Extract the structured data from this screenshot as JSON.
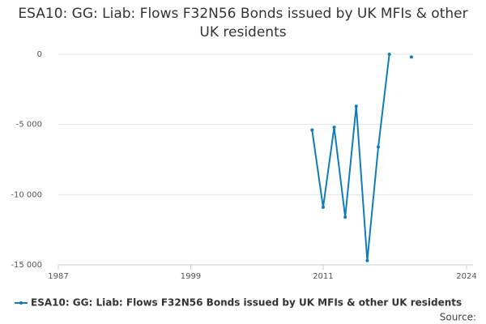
{
  "chart_data": {
    "type": "line",
    "title": "ESA10: GG: Liab: Flows F32N56 Bonds issued by UK MFIs & other UK residents",
    "x": [
      2010,
      2011,
      2012,
      2013,
      2014,
      2015,
      2016,
      2017,
      2018,
      2019
    ],
    "series": [
      {
        "name": "ESA10: GG: Liab: Flows F32N56 Bonds issued by UK MFIs & other UK residents",
        "color": "#0f7dbb",
        "values": [
          -5400,
          -10900,
          -5200,
          -11600,
          -3700,
          -14700,
          -6600,
          0,
          null,
          -200
        ]
      }
    ],
    "xlim": [
      1987,
      2024
    ],
    "xticks": [
      1987,
      1999,
      2011,
      2024
    ],
    "ylim": [
      -15000,
      1000
    ],
    "yticks": [
      {
        "value": -15000,
        "label": "-15 000"
      },
      {
        "value": -10000,
        "label": "-10 000"
      },
      {
        "value": -5000,
        "label": "-5 000"
      },
      0
    ],
    "grid": true,
    "source_label": "Source:"
  }
}
